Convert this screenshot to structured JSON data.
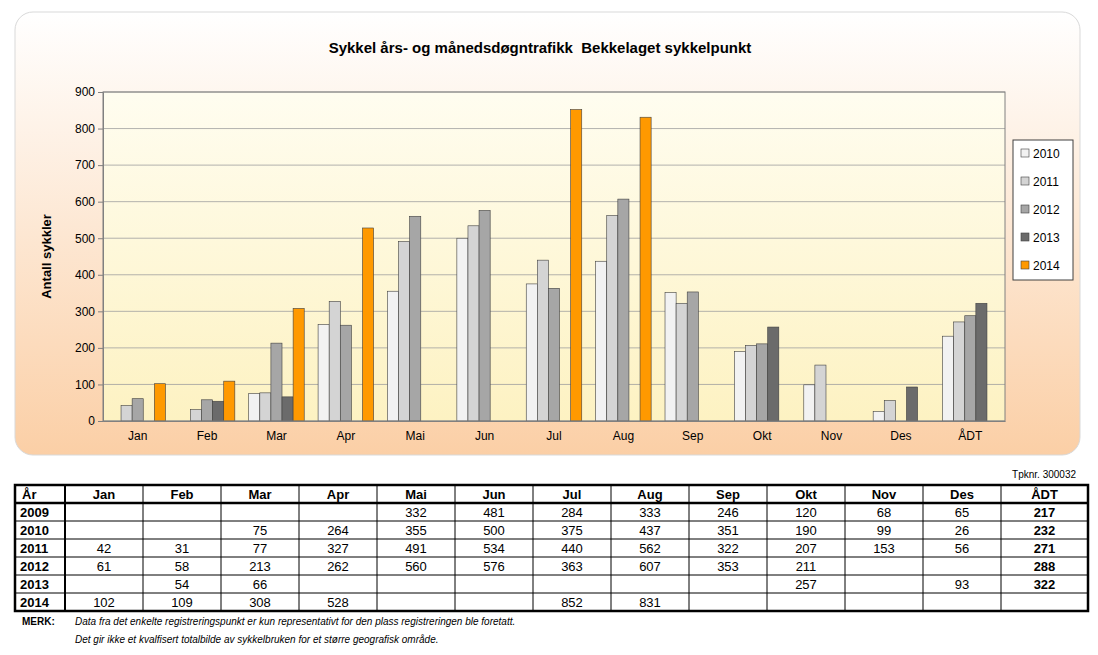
{
  "chart_data": {
    "type": "bar",
    "title": "Sykkel års- og månedsdøgntrafikk  Bekkelaget sykkelpunkt",
    "y_label": "Antall sykkler",
    "categories": [
      "Jan",
      "Feb",
      "Mar",
      "Apr",
      "Mai",
      "Jun",
      "Jul",
      "Aug",
      "Sep",
      "Okt",
      "Nov",
      "Des",
      "ÅDT"
    ],
    "series": [
      {
        "name": "2010",
        "color": "#f2f2f2",
        "values": [
          null,
          null,
          75,
          264,
          355,
          500,
          375,
          437,
          351,
          190,
          99,
          26,
          232
        ]
      },
      {
        "name": "2011",
        "color": "#d4d4d4",
        "values": [
          42,
          31,
          77,
          327,
          491,
          534,
          440,
          562,
          322,
          207,
          153,
          56,
          271
        ]
      },
      {
        "name": "2012",
        "color": "#a6a6a6",
        "values": [
          61,
          58,
          213,
          262,
          560,
          576,
          363,
          607,
          353,
          211,
          null,
          null,
          288
        ]
      },
      {
        "name": "2013",
        "color": "#6b6b6b",
        "values": [
          null,
          54,
          66,
          null,
          null,
          null,
          null,
          null,
          null,
          257,
          null,
          93,
          322
        ]
      },
      {
        "name": "2014",
        "color": "#ff9900",
        "values": [
          102,
          109,
          308,
          528,
          null,
          null,
          852,
          831,
          null,
          null,
          null,
          null,
          null
        ]
      }
    ],
    "ylim": [
      0,
      900
    ],
    "yticks": [
      0,
      100,
      200,
      300,
      400,
      500,
      600,
      700,
      800,
      900
    ],
    "grid": true,
    "legend": "right"
  },
  "table": {
    "id_label": "Tpknr. 300032",
    "columns": [
      "År",
      "Jan",
      "Feb",
      "Mar",
      "Apr",
      "Mai",
      "Jun",
      "Jul",
      "Aug",
      "Sep",
      "Okt",
      "Nov",
      "Des",
      "ÅDT"
    ],
    "rows": [
      {
        "year": "2009",
        "values": [
          null,
          null,
          null,
          null,
          332,
          481,
          284,
          333,
          246,
          120,
          68,
          65,
          217
        ]
      },
      {
        "year": "2010",
        "values": [
          null,
          null,
          75,
          264,
          355,
          500,
          375,
          437,
          351,
          190,
          99,
          26,
          232
        ]
      },
      {
        "year": "2011",
        "values": [
          42,
          31,
          77,
          327,
          491,
          534,
          440,
          562,
          322,
          207,
          153,
          56,
          271
        ]
      },
      {
        "year": "2012",
        "values": [
          61,
          58,
          213,
          262,
          560,
          576,
          363,
          607,
          353,
          211,
          null,
          null,
          288
        ]
      },
      {
        "year": "2013",
        "values": [
          null,
          54,
          66,
          null,
          null,
          null,
          null,
          null,
          null,
          257,
          null,
          93,
          322
        ]
      },
      {
        "year": "2014",
        "values": [
          102,
          109,
          308,
          528,
          null,
          null,
          852,
          831,
          null,
          null,
          null,
          null,
          null
        ]
      }
    ],
    "notes_label": "MERK:",
    "notes": [
      "Data fra det enkelte registreringspunkt er kun representativt for den plass registreringen ble foretatt.",
      "Det gir ikke et kvalfisert totalbilde av sykkelbruken for et større geografisk område."
    ]
  }
}
